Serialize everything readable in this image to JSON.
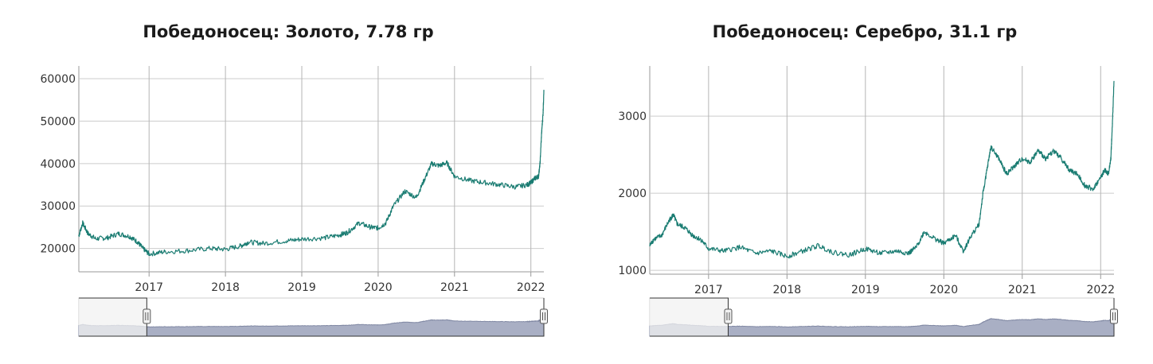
{
  "colors": {
    "series": "#1a7c72",
    "grid": "#cccccc",
    "navigator_fill": "#a9afc4",
    "navigator_unselected": "#f2f2f2"
  },
  "chart_data": [
    {
      "type": "line",
      "title": "Победоносец: Золото, 7.78 гр",
      "xlabel": "",
      "ylabel": "",
      "x_start": 2016.08,
      "x_end": 2022.17,
      "ylim": [
        14500,
        63000
      ],
      "yticks": [
        20000,
        30000,
        40000,
        50000,
        60000
      ],
      "ytick_labels": [
        "20000",
        "30000",
        "40000",
        "50000",
        "60000"
      ],
      "xticks": [
        2017,
        2018,
        2019,
        2020,
        2021,
        2022
      ],
      "xtick_labels": [
        "2017",
        "2018",
        "2019",
        "2020",
        "2021",
        "2022"
      ],
      "grid": true,
      "navigator_selection": [
        2016.97,
        2022.17
      ],
      "series": [
        {
          "x": [
            2016.08,
            2016.13,
            2016.2,
            2016.3,
            2016.45,
            2016.6,
            2016.75,
            2016.85,
            2016.92,
            2017.0,
            2017.2,
            2017.5,
            2017.8,
            2018.0,
            2018.2,
            2018.3,
            2018.5,
            2018.8,
            2019.0,
            2019.3,
            2019.5,
            2019.6,
            2019.75,
            2019.9,
            2020.0,
            2020.1,
            2020.2,
            2020.35,
            2020.5,
            2020.6,
            2020.7,
            2020.8,
            2020.9,
            2021.0,
            2021.2,
            2021.4,
            2021.6,
            2021.8,
            2021.95,
            2022.0,
            2022.05,
            2022.1,
            2022.12,
            2022.14,
            2022.16,
            2022.17
          ],
          "y": [
            23000,
            26000,
            23500,
            22300,
            22500,
            23500,
            22800,
            21500,
            20000,
            18700,
            19200,
            19500,
            20000,
            19800,
            20600,
            21500,
            21200,
            21800,
            22200,
            22500,
            23200,
            23800,
            26000,
            25000,
            24800,
            26000,
            30000,
            33500,
            32000,
            36000,
            40000,
            39500,
            40200,
            37000,
            36000,
            35500,
            35000,
            34500,
            35000,
            35500,
            36500,
            37000,
            40000,
            47000,
            52000,
            57000
          ]
        }
      ]
    },
    {
      "type": "line",
      "title": "Победоносец: Серебро, 31.1 гр",
      "xlabel": "",
      "ylabel": "",
      "x_start": 2016.25,
      "x_end": 2022.17,
      "ylim": [
        950,
        3650
      ],
      "yticks": [
        1000,
        2000,
        3000
      ],
      "ytick_labels": [
        "1000",
        "2000",
        "3000"
      ],
      "xticks": [
        2017,
        2018,
        2019,
        2020,
        2021,
        2022
      ],
      "xtick_labels": [
        "2017",
        "2018",
        "2019",
        "2020",
        "2021",
        "2022"
      ],
      "grid": true,
      "navigator_selection": [
        2017.25,
        2022.17
      ],
      "series": [
        {
          "x": [
            2016.25,
            2016.3,
            2016.4,
            2016.5,
            2016.55,
            2016.6,
            2016.7,
            2016.8,
            2016.9,
            2017.0,
            2017.2,
            2017.4,
            2017.6,
            2017.8,
            2018.0,
            2018.2,
            2018.4,
            2018.6,
            2018.8,
            2019.0,
            2019.2,
            2019.4,
            2019.55,
            2019.65,
            2019.75,
            2019.9,
            2020.0,
            2020.15,
            2020.25,
            2020.35,
            2020.45,
            2020.5,
            2020.55,
            2020.6,
            2020.7,
            2020.8,
            2020.9,
            2021.0,
            2021.1,
            2021.2,
            2021.3,
            2021.4,
            2021.5,
            2021.6,
            2021.7,
            2021.8,
            2021.9,
            2022.0,
            2022.05,
            2022.1,
            2022.13,
            2022.15,
            2022.17
          ],
          "y": [
            1320,
            1400,
            1450,
            1650,
            1720,
            1600,
            1550,
            1450,
            1400,
            1280,
            1250,
            1300,
            1220,
            1250,
            1180,
            1250,
            1320,
            1230,
            1200,
            1280,
            1220,
            1250,
            1220,
            1300,
            1500,
            1400,
            1350,
            1450,
            1250,
            1450,
            1600,
            2000,
            2300,
            2600,
            2450,
            2250,
            2350,
            2450,
            2400,
            2550,
            2450,
            2550,
            2450,
            2300,
            2250,
            2100,
            2050,
            2200,
            2300,
            2250,
            2450,
            2900,
            3450
          ]
        }
      ]
    }
  ]
}
